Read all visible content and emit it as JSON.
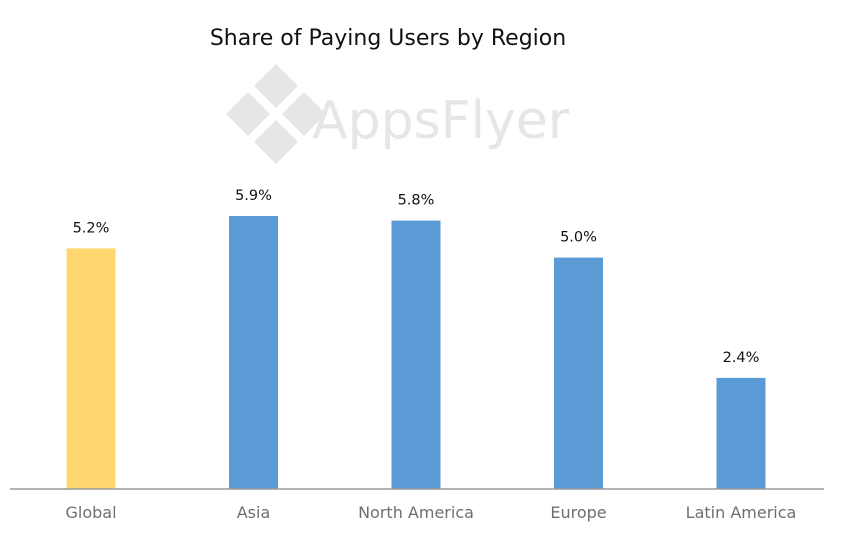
{
  "watermark": {
    "text": "AppsFlyer"
  },
  "colors": {
    "highlight_bar": "#ffd76e",
    "bar": "#5b9bd5",
    "axis": "#9a9a9a",
    "watermark": "#e6e6e6"
  },
  "chart_data": {
    "type": "bar",
    "title": "Share of Paying Users by Region",
    "xlabel": "",
    "ylabel": "",
    "categories": [
      "Global",
      "Asia",
      "North America",
      "Europe",
      "Latin America"
    ],
    "values": [
      5.2,
      5.9,
      5.8,
      5.0,
      2.4
    ],
    "value_labels": [
      "5.2%",
      "5.9%",
      "5.8%",
      "5.0%",
      "2.4%"
    ],
    "highlight_index": 0,
    "ylim": [
      0,
      5.9
    ],
    "grid": false,
    "legend": "none"
  }
}
